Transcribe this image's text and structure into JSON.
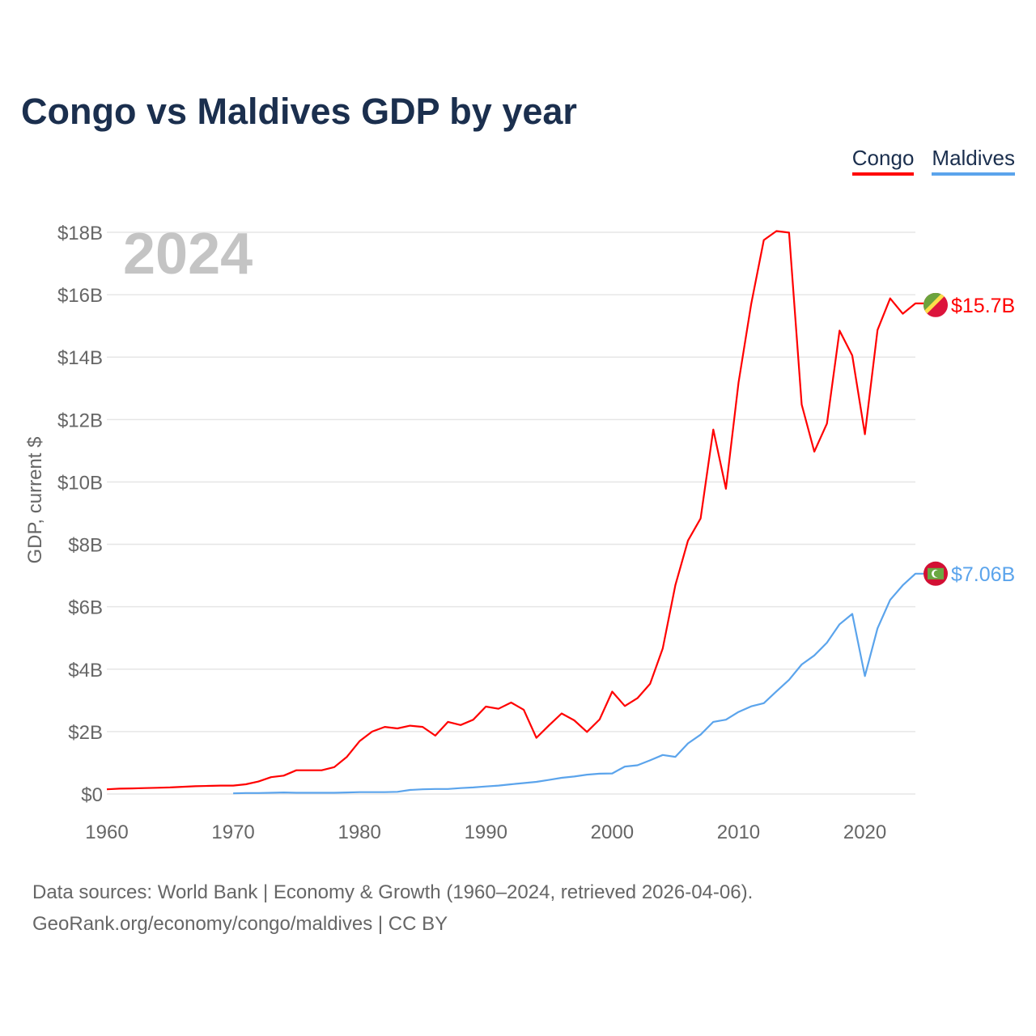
{
  "title": "Congo vs Maldives GDP by year",
  "legend": [
    {
      "label": "Congo",
      "color": "#ff0000"
    },
    {
      "label": "Maldives",
      "color": "#5ba4ec"
    }
  ],
  "year_watermark": "2024",
  "footer": {
    "line1": "Data sources: World Bank | Economy & Growth (1960–2024, retrieved 2026-04-06).",
    "line2": "GeoRank.org/economy/congo/maldives | CC BY"
  },
  "chart_data": {
    "type": "line",
    "title": "Congo vs Maldives GDP by year",
    "xlabel": "",
    "ylabel": "GDP, current $",
    "xlim": [
      1960,
      2024
    ],
    "ylim": [
      0,
      18
    ],
    "x_ticks": [
      1960,
      1970,
      1980,
      1990,
      2000,
      2010,
      2020
    ],
    "x_tick_labels": [
      "1960",
      "1970",
      "1980",
      "1990",
      "2000",
      "2010",
      "2020"
    ],
    "y_ticks": [
      0,
      2,
      4,
      6,
      8,
      10,
      12,
      14,
      16,
      18
    ],
    "y_tick_labels": [
      "$0",
      "$2B",
      "$4B",
      "$6B",
      "$8B",
      "$10B",
      "$12B",
      "$14B",
      "$16B",
      "$18B"
    ],
    "grid": true,
    "legend_position": "top-right",
    "units": "billions USD",
    "series": [
      {
        "name": "Congo",
        "color": "#ff0000",
        "start_year": 1960,
        "end_label": "$15.7B",
        "flag": "congo-flag",
        "values": [
          0.15,
          0.17,
          0.18,
          0.19,
          0.2,
          0.21,
          0.23,
          0.25,
          0.26,
          0.27,
          0.27,
          0.31,
          0.4,
          0.54,
          0.59,
          0.76,
          0.76,
          0.76,
          0.86,
          1.19,
          1.69,
          2.0,
          2.15,
          2.1,
          2.19,
          2.15,
          1.87,
          2.31,
          2.21,
          2.38,
          2.8,
          2.73,
          2.93,
          2.7,
          1.8,
          2.2,
          2.58,
          2.36,
          1.99,
          2.39,
          3.28,
          2.82,
          3.07,
          3.53,
          4.66,
          6.69,
          8.12,
          8.83,
          11.68,
          9.78,
          13.19,
          15.7,
          17.75,
          18.04,
          17.99,
          12.48,
          10.97,
          11.87,
          14.85,
          14.05,
          11.53,
          14.87,
          15.88,
          15.39,
          15.72
        ]
      },
      {
        "name": "Maldives",
        "color": "#5ba4ec",
        "start_year": 1970,
        "end_label": "$7.06B",
        "flag": "maldives-flag",
        "values": [
          0.02,
          0.03,
          0.03,
          0.04,
          0.05,
          0.04,
          0.04,
          0.04,
          0.04,
          0.05,
          0.06,
          0.06,
          0.06,
          0.07,
          0.13,
          0.15,
          0.16,
          0.16,
          0.19,
          0.21,
          0.24,
          0.27,
          0.31,
          0.35,
          0.39,
          0.45,
          0.52,
          0.56,
          0.62,
          0.65,
          0.66,
          0.88,
          0.92,
          1.08,
          1.25,
          1.19,
          1.62,
          1.9,
          2.31,
          2.38,
          2.63,
          2.81,
          2.91,
          3.29,
          3.66,
          4.15,
          4.44,
          4.85,
          5.44,
          5.77,
          3.78,
          5.31,
          6.22,
          6.69,
          7.06
        ]
      }
    ]
  }
}
